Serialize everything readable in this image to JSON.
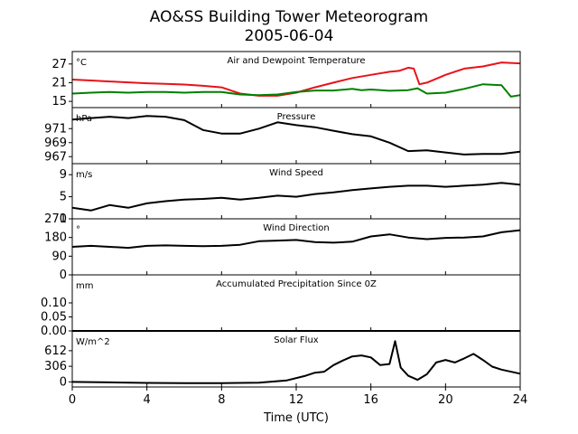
{
  "figure": {
    "title": "AO&SS Building Tower Meteorogram",
    "subtitle": "2005-06-04",
    "xlabel": "Time (UTC)",
    "x_ticks": [
      0,
      4,
      8,
      12,
      16,
      20,
      24
    ],
    "x_tick_labels": [
      "0",
      "4",
      "8",
      "12",
      "16",
      "20",
      "24"
    ],
    "xlim": [
      0,
      24
    ]
  },
  "chart_data": [
    {
      "type": "line",
      "title": "Air and Dewpoint Temperature",
      "unit": "°C",
      "ylim": [
        13,
        31
      ],
      "y_ticks": [
        15,
        21,
        27
      ],
      "y_tick_labels": [
        "15",
        "21",
        "27"
      ],
      "series": [
        {
          "color": "#e8121a",
          "points": [
            [
              0,
              22
            ],
            [
              1,
              21.7
            ],
            [
              2,
              21.4
            ],
            [
              3,
              21.1
            ],
            [
              4,
              20.8
            ],
            [
              5,
              20.6
            ],
            [
              6,
              20.4
            ],
            [
              7,
              20
            ],
            [
              8,
              19.5
            ],
            [
              9,
              17.5
            ],
            [
              10,
              16.8
            ],
            [
              11,
              16.8
            ],
            [
              12,
              17.8
            ],
            [
              13,
              19.5
            ],
            [
              14,
              21
            ],
            [
              15,
              22.5
            ],
            [
              16,
              23.5
            ],
            [
              17,
              24.5
            ],
            [
              17.5,
              24.8
            ],
            [
              18,
              25.8
            ],
            [
              18.3,
              25.5
            ],
            [
              18.6,
              20.5
            ],
            [
              19,
              21
            ],
            [
              20,
              23.5
            ],
            [
              21,
              25.5
            ],
            [
              22,
              26.2
            ],
            [
              23,
              27.5
            ],
            [
              24,
              27.2
            ]
          ]
        },
        {
          "color": "#008000",
          "points": [
            [
              0,
              17.5
            ],
            [
              1,
              17.8
            ],
            [
              2,
              18
            ],
            [
              3,
              17.8
            ],
            [
              4,
              18
            ],
            [
              5,
              18
            ],
            [
              6,
              17.8
            ],
            [
              7,
              18
            ],
            [
              8,
              18
            ],
            [
              9,
              17.2
            ],
            [
              10,
              17
            ],
            [
              11,
              17.2
            ],
            [
              12,
              18
            ],
            [
              13,
              18.5
            ],
            [
              14,
              18.5
            ],
            [
              15,
              19
            ],
            [
              15.5,
              18.6
            ],
            [
              16,
              18.8
            ],
            [
              17,
              18.4
            ],
            [
              18,
              18.6
            ],
            [
              18.5,
              19.2
            ],
            [
              19,
              17.5
            ],
            [
              20,
              17.8
            ],
            [
              21,
              19
            ],
            [
              22,
              20.5
            ],
            [
              23,
              20.2
            ],
            [
              23.5,
              16.5
            ],
            [
              24,
              17
            ]
          ]
        }
      ]
    },
    {
      "type": "line",
      "title": "Pressure",
      "unit": "hPa",
      "ylim": [
        966,
        974
      ],
      "y_ticks": [
        967,
        969,
        971
      ],
      "y_tick_labels": [
        "967",
        "969",
        "971"
      ],
      "series": [
        {
          "color": "#000000",
          "points": [
            [
              0,
              972.3
            ],
            [
              1,
              972.5
            ],
            [
              2,
              972.7
            ],
            [
              3,
              972.5
            ],
            [
              4,
              972.8
            ],
            [
              5,
              972.7
            ],
            [
              6,
              972.2
            ],
            [
              7,
              970.8
            ],
            [
              8,
              970.3
            ],
            [
              9,
              970.3
            ],
            [
              10,
              971
            ],
            [
              11,
              971.9
            ],
            [
              12,
              971.5
            ],
            [
              13,
              971.2
            ],
            [
              14,
              970.7
            ],
            [
              15,
              970.2
            ],
            [
              16,
              969.9
            ],
            [
              17,
              969
            ],
            [
              18,
              967.8
            ],
            [
              19,
              967.9
            ],
            [
              20,
              967.6
            ],
            [
              21,
              967.3
            ],
            [
              22,
              967.4
            ],
            [
              23,
              967.4
            ],
            [
              24,
              967.7
            ]
          ]
        }
      ]
    },
    {
      "type": "line",
      "title": "Wind Speed",
      "unit": "m/s",
      "ylim": [
        1,
        11
      ],
      "y_ticks": [
        1,
        5,
        9
      ],
      "y_tick_labels": [
        "1",
        "5",
        "9"
      ],
      "series": [
        {
          "color": "#000000",
          "points": [
            [
              0,
              3
            ],
            [
              1,
              2.5
            ],
            [
              2,
              3.5
            ],
            [
              3,
              3
            ],
            [
              4,
              3.8
            ],
            [
              5,
              4.2
            ],
            [
              6,
              4.5
            ],
            [
              7,
              4.6
            ],
            [
              8,
              4.8
            ],
            [
              9,
              4.5
            ],
            [
              10,
              4.8
            ],
            [
              11,
              5.2
            ],
            [
              12,
              5
            ],
            [
              13,
              5.5
            ],
            [
              14,
              5.8
            ],
            [
              15,
              6.2
            ],
            [
              16,
              6.5
            ],
            [
              17,
              6.8
            ],
            [
              18,
              7
            ],
            [
              19,
              7
            ],
            [
              20,
              6.8
            ],
            [
              21,
              7
            ],
            [
              22,
              7.2
            ],
            [
              23,
              7.5
            ],
            [
              24,
              7.2
            ]
          ]
        }
      ]
    },
    {
      "type": "line",
      "title": "Wind Direction",
      "unit": "°",
      "ylim": [
        0,
        270
      ],
      "y_ticks": [
        0,
        90,
        180,
        270
      ],
      "y_tick_labels": [
        "0",
        "90",
        "180",
        "270"
      ],
      "series": [
        {
          "color": "#000000",
          "points": [
            [
              0,
              135
            ],
            [
              1,
              140
            ],
            [
              2,
              135
            ],
            [
              3,
              130
            ],
            [
              4,
              140
            ],
            [
              5,
              142
            ],
            [
              6,
              140
            ],
            [
              7,
              138
            ],
            [
              8,
              140
            ],
            [
              9,
              145
            ],
            [
              10,
              162
            ],
            [
              11,
              165
            ],
            [
              12,
              168
            ],
            [
              13,
              158
            ],
            [
              14,
              155
            ],
            [
              15,
              160
            ],
            [
              16,
              185
            ],
            [
              17,
              195
            ],
            [
              18,
              180
            ],
            [
              19,
              172
            ],
            [
              20,
              178
            ],
            [
              21,
              180
            ],
            [
              22,
              185
            ],
            [
              23,
              205
            ],
            [
              24,
              215
            ]
          ]
        }
      ]
    },
    {
      "type": "line",
      "title": "Accumulated Precipitation Since 0Z",
      "unit": "mm",
      "ylim": [
        0,
        0.2
      ],
      "y_ticks": [
        0,
        0.05,
        0.1
      ],
      "y_tick_labels": [
        "0.00",
        "0.05",
        "0.10"
      ],
      "series": [
        {
          "color": "#000000",
          "points": [
            [
              0,
              0
            ],
            [
              24,
              0
            ]
          ]
        }
      ]
    },
    {
      "type": "line",
      "title": "Solar Flux",
      "unit": "W/m^2",
      "ylim": [
        -100,
        1000
      ],
      "y_ticks": [
        0,
        306,
        612
      ],
      "y_tick_labels": [
        "0",
        "306",
        "612"
      ],
      "series": [
        {
          "color": "#000000",
          "points": [
            [
              0,
              0
            ],
            [
              2,
              -10
            ],
            [
              4,
              -20
            ],
            [
              6,
              -25
            ],
            [
              8,
              -25
            ],
            [
              10,
              -15
            ],
            [
              11.5,
              30
            ],
            [
              12.5,
              120
            ],
            [
              13,
              180
            ],
            [
              13.5,
              200
            ],
            [
              14,
              330
            ],
            [
              14.5,
              420
            ],
            [
              15,
              500
            ],
            [
              15.5,
              520
            ],
            [
              16,
              480
            ],
            [
              16.5,
              330
            ],
            [
              17,
              350
            ],
            [
              17.3,
              800
            ],
            [
              17.6,
              280
            ],
            [
              18,
              120
            ],
            [
              18.5,
              40
            ],
            [
              19,
              150
            ],
            [
              19.5,
              380
            ],
            [
              20,
              430
            ],
            [
              20.5,
              380
            ],
            [
              21,
              460
            ],
            [
              21.5,
              550
            ],
            [
              22,
              430
            ],
            [
              22.5,
              300
            ],
            [
              23,
              240
            ],
            [
              24,
              160
            ]
          ]
        }
      ]
    }
  ]
}
